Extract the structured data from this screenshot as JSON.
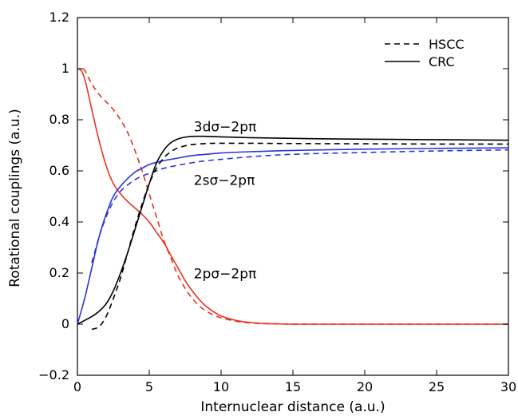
{
  "chart_data": {
    "type": "line",
    "title": "",
    "xlabel": "Internuclear distance (a.u.)",
    "ylabel": "Rotational couplings (a.u.)",
    "xlim": [
      0,
      30
    ],
    "ylim": [
      -0.2,
      1.2
    ],
    "xticks": [
      0,
      5,
      10,
      15,
      20,
      25,
      30
    ],
    "yticks": [
      -0.2,
      0,
      0.2,
      0.4,
      0.6,
      0.8,
      1,
      1.2
    ],
    "xtick_labels": [
      "0",
      "5",
      "10",
      "15",
      "20",
      "25",
      "30"
    ],
    "ytick_labels": [
      "−0.2",
      "0",
      "0.2",
      "0.4",
      "0.6",
      "0.8",
      "1",
      "1.2"
    ],
    "grid": false,
    "legend": {
      "position": "top-right",
      "entries": [
        {
          "label": "HSCC",
          "style": "dashed"
        },
        {
          "label": "CRC",
          "style": "solid"
        }
      ]
    },
    "annotations": [
      {
        "text": "3dσ−2pπ",
        "x": 8.1,
        "y": 0.755
      },
      {
        "text": "2sσ−2pπ",
        "x": 8.1,
        "y": 0.545
      },
      {
        "text": "2pσ−2pπ",
        "x": 8.1,
        "y": 0.18
      }
    ],
    "series": [
      {
        "group": "2pσ−2pπ",
        "style": "solid",
        "color": "#e8321e",
        "x": [
          0,
          0.3,
          0.6,
          1,
          1.5,
          2,
          2.5,
          3,
          3.5,
          4,
          4.5,
          5,
          5.5,
          6,
          6.5,
          7,
          7.5,
          8,
          8.5,
          9,
          9.5,
          10,
          11,
          12,
          13,
          14,
          15,
          17,
          20,
          25,
          30
        ],
        "y": [
          1.0,
          0.99,
          0.94,
          0.84,
          0.72,
          0.62,
          0.55,
          0.51,
          0.48,
          0.455,
          0.43,
          0.4,
          0.36,
          0.32,
          0.27,
          0.22,
          0.17,
          0.13,
          0.095,
          0.068,
          0.048,
          0.032,
          0.015,
          0.007,
          0.003,
          0.001,
          0.0,
          0.0,
          0.0,
          0.0,
          0.0
        ]
      },
      {
        "group": "2pσ−2pπ",
        "style": "dashed",
        "color": "#e8321e",
        "x": [
          0.4,
          0.6,
          1,
          1.5,
          2,
          2.5,
          3,
          3.5,
          4,
          4.5,
          5,
          5.5,
          6,
          6.5,
          7,
          7.5,
          8,
          8.5,
          9,
          9.5,
          10,
          11,
          12,
          13,
          14,
          15,
          17,
          20,
          25,
          30
        ],
        "y": [
          1.0,
          0.985,
          0.94,
          0.9,
          0.87,
          0.84,
          0.8,
          0.75,
          0.68,
          0.6,
          0.51,
          0.42,
          0.33,
          0.26,
          0.19,
          0.14,
          0.1,
          0.07,
          0.05,
          0.035,
          0.025,
          0.012,
          0.005,
          0.002,
          0.001,
          0.0,
          0.0,
          0.0,
          0.0,
          0.0
        ]
      },
      {
        "group": "2sσ−2pπ",
        "style": "solid",
        "color": "#2a35d8",
        "x": [
          0,
          0.5,
          1,
          1.5,
          2,
          2.5,
          3,
          3.5,
          4,
          4.5,
          5,
          5.5,
          6,
          7,
          8,
          9,
          10,
          12,
          15,
          20,
          25,
          30
        ],
        "y": [
          0.0,
          0.1,
          0.22,
          0.34,
          0.43,
          0.5,
          0.54,
          0.57,
          0.595,
          0.61,
          0.625,
          0.633,
          0.64,
          0.65,
          0.66,
          0.665,
          0.67,
          0.675,
          0.68,
          0.685,
          0.688,
          0.69
        ]
      },
      {
        "group": "2sσ−2pπ",
        "style": "dashed",
        "color": "#2a35d8",
        "x": [
          1,
          1.5,
          2,
          2.5,
          3,
          3.5,
          4,
          4.5,
          5,
          5.5,
          6,
          7,
          8,
          9,
          10,
          12,
          15,
          20,
          25,
          30
        ],
        "y": [
          0.24,
          0.34,
          0.42,
          0.48,
          0.52,
          0.545,
          0.565,
          0.58,
          0.59,
          0.6,
          0.61,
          0.622,
          0.632,
          0.64,
          0.645,
          0.655,
          0.665,
          0.672,
          0.678,
          0.682
        ]
      },
      {
        "group": "3dσ−2pπ",
        "style": "solid",
        "color": "#000000",
        "x": [
          0,
          1,
          1.5,
          2,
          2.5,
          3,
          3.5,
          4,
          4.5,
          5,
          5.5,
          6,
          6.5,
          7,
          7.5,
          8,
          9,
          10,
          12,
          15,
          20,
          25,
          30
        ],
        "y": [
          0.0,
          0.03,
          0.05,
          0.08,
          0.13,
          0.2,
          0.28,
          0.37,
          0.46,
          0.55,
          0.63,
          0.68,
          0.71,
          0.725,
          0.732,
          0.735,
          0.735,
          0.733,
          0.73,
          0.727,
          0.724,
          0.722,
          0.72
        ]
      },
      {
        "group": "3dσ−2pπ",
        "style": "dashed",
        "color": "#000000",
        "x": [
          1,
          1.5,
          2,
          2.5,
          3,
          3.5,
          4,
          4.5,
          5,
          5.5,
          6,
          6.5,
          7,
          7.5,
          8,
          9,
          10,
          12,
          15,
          20,
          25,
          30
        ],
        "y": [
          -0.02,
          -0.01,
          0.03,
          0.1,
          0.18,
          0.28,
          0.38,
          0.47,
          0.55,
          0.61,
          0.65,
          0.675,
          0.69,
          0.698,
          0.703,
          0.707,
          0.708,
          0.708,
          0.707,
          0.706,
          0.705,
          0.705
        ]
      }
    ]
  }
}
